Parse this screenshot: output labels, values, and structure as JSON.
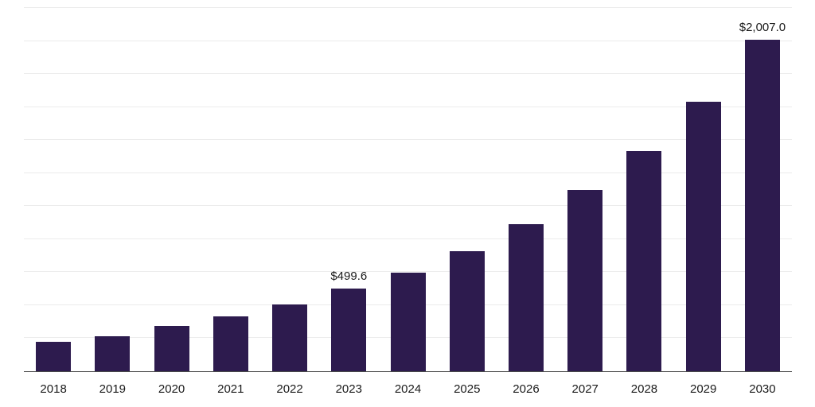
{
  "chart_data": {
    "type": "bar",
    "title": "",
    "xlabel": "",
    "ylabel": "",
    "categories": [
      "2018",
      "2019",
      "2020",
      "2021",
      "2022",
      "2023",
      "2024",
      "2025",
      "2026",
      "2027",
      "2028",
      "2029",
      "2030"
    ],
    "values": [
      178,
      211,
      274,
      332,
      404,
      499.6,
      598,
      726,
      890,
      1100,
      1332,
      1634,
      2007
    ],
    "data_labels": {
      "2023": "$499.6",
      "2030": "$2,007.0"
    },
    "ylim": [
      0,
      2200
    ],
    "grid": true,
    "grid_interval": 200,
    "legend": false,
    "bar_color": "#2d1b4e",
    "gridline_color": "#ececec",
    "axis_line_color": "#4a4a4a",
    "label_color": "#1a1a1a",
    "background": "#ffffff"
  }
}
